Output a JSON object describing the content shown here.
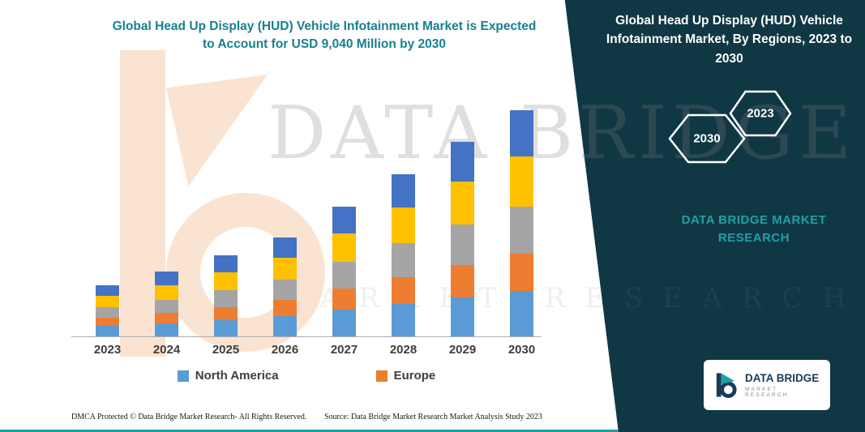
{
  "header": {
    "title_line1": "Global Head Up Display (HUD) Vehicle Infotainment Market is Expected",
    "title_line2": "to Account for USD 9,040 Million by 2030"
  },
  "wedge": {
    "title": "Global Head Up Display (HUD) Vehicle Infotainment Market, By Regions, 2023 to 2030",
    "hexagon_left": "2030",
    "hexagon_right": "2023",
    "brand_line1": "DATA BRIDGE MARKET",
    "brand_line2": "RESEARCH",
    "bg_color": "#103744"
  },
  "watermark": {
    "line1": "DATA BRIDGE",
    "line2": "MARKET RESEARCH"
  },
  "logo_box": {
    "name": "DATA BRIDGE",
    "subtitle": "MARKET RESEARCH"
  },
  "footer": {
    "dmca": "DMCA Protected © Data Bridge Market Research-  All Rights Reserved.",
    "source": "Source: Data Bridge Market Research  Market Analysis Study 2023"
  },
  "chart_data": {
    "type": "bar",
    "stacked": true,
    "title": "Global Head Up Display (HUD) Vehicle Infotainment Market, By Regions, 2023 to 2030",
    "categories": [
      "2023",
      "2024",
      "2025",
      "2026",
      "2027",
      "2028",
      "2029",
      "2030"
    ],
    "series": [
      {
        "name": "North America",
        "color": "#5B9BD5",
        "values": [
          420,
          520,
          650,
          810,
          1070,
          1300,
          1560,
          1810
        ]
      },
      {
        "name": "Europe",
        "color": "#ED7D31",
        "values": [
          320,
          420,
          520,
          650,
          840,
          1070,
          1300,
          1490
        ]
      },
      {
        "name": "Unlabeled (gray)",
        "color": "#A5A5A5",
        "values": [
          420,
          520,
          680,
          810,
          1070,
          1360,
          1620,
          1880
        ]
      },
      {
        "name": "Unlabeled (yellow)",
        "color": "#FFC000",
        "values": [
          450,
          580,
          710,
          870,
          1130,
          1430,
          1720,
          2010
        ]
      },
      {
        "name": "Unlabeled (blue)",
        "color": "#4472C4",
        "values": [
          420,
          550,
          680,
          810,
          1070,
          1330,
          1590,
          1850
        ]
      }
    ],
    "totals": [
      2030,
      2590,
      3240,
      3950,
      5180,
      6490,
      7790,
      9040
    ],
    "legend": [
      {
        "label": "North America",
        "color": "#5B9BD5"
      },
      {
        "label": "Europe",
        "color": "#ED7D31"
      }
    ],
    "ylim": [
      0,
      9040
    ],
    "unit": "USD Million (values estimated from bar heights; 2030 total labeled as 9,040)",
    "xlabel": "",
    "ylabel": "",
    "grid": false,
    "legend_position": "bottom"
  }
}
